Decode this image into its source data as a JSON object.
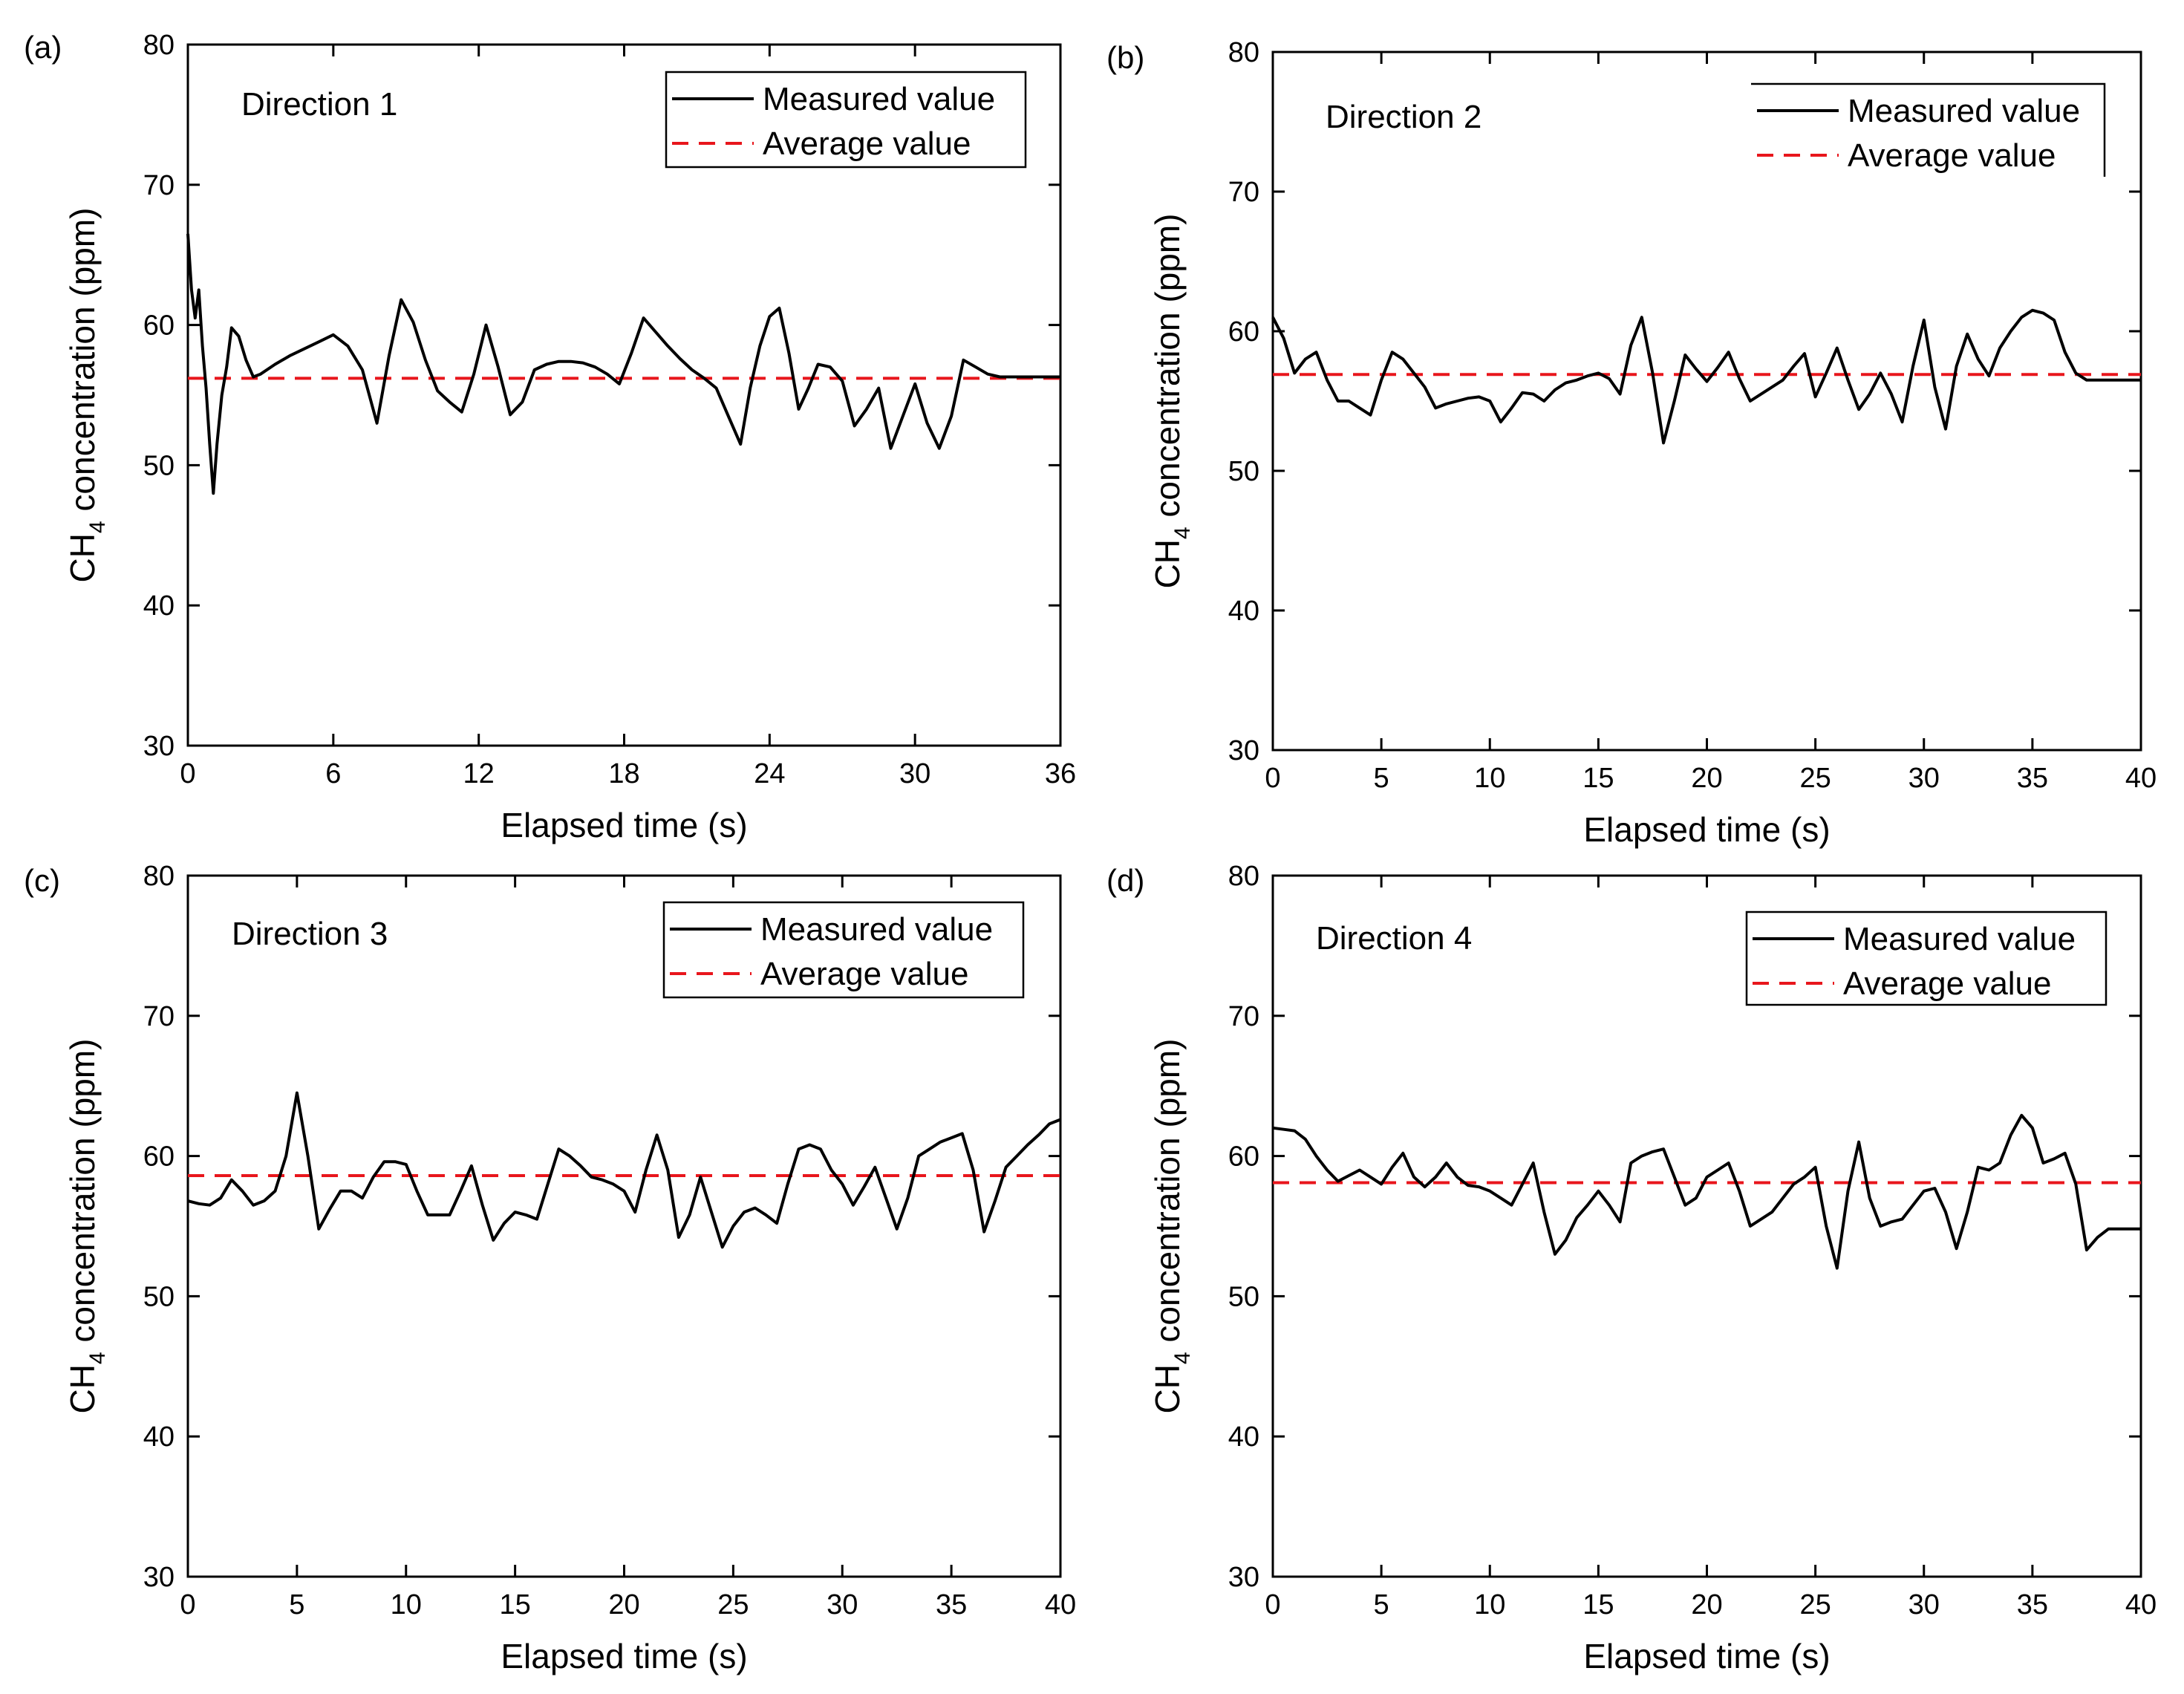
{
  "legend_labels": {
    "measured": "Measured value",
    "average": "Average value"
  },
  "colors": {
    "measured": "#000000",
    "average": "#e8161c"
  },
  "chart_data": [
    {
      "panel_label": "(a)",
      "type": "line",
      "title": "Direction 1",
      "xlabel": "Elapsed time (s)",
      "ylabel_main": "CH",
      "ylabel_sub": "4",
      "ylabel_rest": " concentration (ppm)",
      "xlim": [
        0,
        36
      ],
      "ylim": [
        30,
        80
      ],
      "xticks": [
        0,
        6,
        12,
        18,
        24,
        30,
        36
      ],
      "yticks": [
        30,
        40,
        50,
        60,
        70,
        80
      ],
      "legend_position": "top-right",
      "average": 56.2,
      "series": [
        {
          "name": "Measured value",
          "x": [
            0,
            0.15,
            0.3,
            0.45,
            0.6,
            0.75,
            0.9,
            1.05,
            1.2,
            1.4,
            1.6,
            1.8,
            2.1,
            2.4,
            2.7,
            3.0,
            3.6,
            4.2,
            4.8,
            5.4,
            6.0,
            6.6,
            7.2,
            7.8,
            8.3,
            8.8,
            9.3,
            9.8,
            10.3,
            10.8,
            11.3,
            11.8,
            12.3,
            12.8,
            13.3,
            13.8,
            14.3,
            14.8,
            15.3,
            15.8,
            16.3,
            16.8,
            17.3,
            17.8,
            18.3,
            18.8,
            19.3,
            19.8,
            20.3,
            20.8,
            21.3,
            21.8,
            22.3,
            22.8,
            23.2,
            23.6,
            24.0,
            24.4,
            24.8,
            25.2,
            25.6,
            26.0,
            26.5,
            27.0,
            27.5,
            28.0,
            28.5,
            29.0,
            29.5,
            30.0,
            30.5,
            31.0,
            31.5,
            32.0,
            32.5,
            33.0,
            33.5,
            34.0,
            34.5,
            35.0,
            35.5,
            36.0
          ],
          "y": [
            66.5,
            62.5,
            60.5,
            62.5,
            58.5,
            55.5,
            51.5,
            48.0,
            51.5,
            55.0,
            57.0,
            59.8,
            59.2,
            57.5,
            56.3,
            56.5,
            57.2,
            57.8,
            58.3,
            58.8,
            59.3,
            58.5,
            56.8,
            53.0,
            57.8,
            61.8,
            60.2,
            57.5,
            55.3,
            54.5,
            53.8,
            56.5,
            60.0,
            57.0,
            53.6,
            54.5,
            56.8,
            57.2,
            57.4,
            57.4,
            57.3,
            57.0,
            56.5,
            55.8,
            58.0,
            60.5,
            59.5,
            58.5,
            57.6,
            56.8,
            56.2,
            55.5,
            53.5,
            51.5,
            55.5,
            58.5,
            60.6,
            61.2,
            58.0,
            54.0,
            55.5,
            57.2,
            57.0,
            56.0,
            52.8,
            54.0,
            55.5,
            51.2,
            53.5,
            55.8,
            53.0,
            51.2,
            53.5,
            57.5,
            57.0,
            56.5,
            56.3,
            56.3,
            56.3,
            56.3,
            56.3,
            56.3
          ]
        }
      ]
    },
    {
      "panel_label": "(b)",
      "type": "line",
      "title": "Direction 2",
      "xlabel": "Elapsed time (s)",
      "ylabel_main": "CH",
      "ylabel_sub": "4",
      "ylabel_rest": " concentration (ppm)",
      "xlim": [
        0,
        40
      ],
      "ylim": [
        30,
        80
      ],
      "xticks": [
        0,
        5,
        10,
        15,
        20,
        25,
        30,
        35,
        40
      ],
      "yticks": [
        30,
        40,
        50,
        60,
        70,
        80
      ],
      "legend_position": "top-right",
      "average": 56.9,
      "series": [
        {
          "name": "Measured value",
          "x": [
            0,
            0.5,
            1.0,
            1.5,
            2.0,
            2.5,
            3.0,
            3.5,
            4.0,
            4.5,
            5.0,
            5.5,
            6.0,
            6.5,
            7.0,
            7.5,
            8.0,
            8.5,
            9.0,
            9.5,
            10.0,
            10.5,
            11.0,
            11.5,
            12.0,
            12.5,
            13.0,
            13.5,
            14.0,
            14.5,
            15.0,
            15.5,
            16.0,
            16.5,
            17.0,
            17.5,
            18.0,
            18.5,
            19.0,
            19.5,
            20.0,
            20.5,
            21.0,
            21.5,
            22.0,
            22.5,
            23.0,
            23.5,
            24.0,
            24.5,
            25.0,
            25.5,
            26.0,
            26.5,
            27.0,
            27.5,
            28.0,
            28.5,
            29.0,
            29.5,
            30.0,
            30.5,
            31.0,
            31.5,
            32.0,
            32.5,
            33.0,
            33.5,
            34.0,
            34.5,
            35.0,
            35.5,
            36.0,
            36.5,
            37.0,
            37.5,
            38.0,
            38.5,
            39.0,
            39.5,
            40.0
          ],
          "y": [
            61.0,
            59.5,
            57.0,
            58.0,
            58.5,
            56.5,
            55.0,
            55.0,
            54.5,
            54.0,
            56.5,
            58.5,
            58.0,
            57.0,
            56.0,
            54.5,
            54.8,
            55.0,
            55.2,
            55.3,
            55.0,
            53.5,
            54.5,
            55.6,
            55.5,
            55.0,
            55.8,
            56.3,
            56.5,
            56.8,
            57.0,
            56.6,
            55.5,
            59.0,
            61.0,
            57.0,
            52.0,
            55.0,
            58.3,
            57.3,
            56.4,
            57.4,
            58.5,
            56.6,
            55.0,
            55.5,
            56.0,
            56.5,
            57.5,
            58.4,
            55.3,
            57.0,
            58.8,
            56.5,
            54.4,
            55.5,
            57.0,
            55.5,
            53.5,
            57.5,
            60.8,
            56.0,
            53.0,
            57.5,
            59.8,
            58.0,
            56.8,
            58.8,
            60.0,
            61.0,
            61.5,
            61.3,
            60.8,
            58.5,
            57.0,
            56.5,
            56.5,
            56.5,
            56.5,
            56.5,
            56.5
          ]
        }
      ]
    },
    {
      "panel_label": "(c)",
      "type": "line",
      "title": "Direction 3",
      "xlabel": "Elapsed time (s)",
      "ylabel_main": "CH",
      "ylabel_sub": "4",
      "ylabel_rest": " concentration (ppm)",
      "xlim": [
        0,
        40
      ],
      "ylim": [
        30,
        80
      ],
      "xticks": [
        0,
        5,
        10,
        15,
        20,
        25,
        30,
        35,
        40
      ],
      "yticks": [
        30,
        40,
        50,
        60,
        70,
        80
      ],
      "legend_position": "top-right",
      "average": 58.6,
      "series": [
        {
          "name": "Measured value",
          "x": [
            0,
            0.5,
            1.0,
            1.5,
            2.0,
            2.5,
            3.0,
            3.5,
            4.0,
            4.5,
            5.0,
            5.5,
            6.0,
            6.5,
            7.0,
            7.5,
            8.0,
            8.5,
            9.0,
            9.5,
            10.0,
            10.5,
            11.0,
            11.5,
            12.0,
            12.5,
            13.0,
            13.5,
            14.0,
            14.5,
            15.0,
            15.5,
            16.0,
            16.5,
            17.0,
            17.5,
            18.0,
            18.5,
            19.0,
            19.5,
            20.0,
            20.5,
            21.0,
            21.5,
            22.0,
            22.5,
            23.0,
            23.5,
            24.0,
            24.5,
            25.0,
            25.5,
            26.0,
            26.5,
            27.0,
            27.5,
            28.0,
            28.5,
            29.0,
            29.5,
            30.0,
            30.5,
            31.0,
            31.5,
            32.0,
            32.5,
            33.0,
            33.5,
            34.0,
            34.5,
            35.0,
            35.5,
            36.0,
            36.5,
            37.0,
            37.5,
            38.0,
            38.5,
            39.0,
            39.5,
            40.0
          ],
          "y": [
            56.8,
            56.6,
            56.5,
            57.0,
            58.3,
            57.5,
            56.5,
            56.8,
            57.5,
            60.0,
            64.5,
            60.0,
            54.8,
            56.2,
            57.5,
            57.5,
            57.0,
            58.5,
            59.6,
            59.6,
            59.4,
            57.5,
            55.8,
            55.8,
            55.8,
            57.5,
            59.3,
            56.5,
            54.0,
            55.2,
            56.0,
            55.8,
            55.5,
            58.0,
            60.5,
            60.0,
            59.3,
            58.5,
            58.3,
            58.0,
            57.5,
            56.0,
            59.0,
            61.5,
            59.0,
            54.2,
            55.8,
            58.5,
            56.0,
            53.5,
            55.0,
            56.0,
            56.3,
            55.8,
            55.2,
            58.0,
            60.5,
            60.8,
            60.5,
            59.0,
            58.0,
            56.5,
            57.8,
            59.2,
            57.0,
            54.8,
            57.0,
            60.0,
            60.5,
            61.0,
            61.3,
            61.6,
            59.0,
            54.6,
            56.8,
            59.2,
            60.0,
            60.8,
            61.5,
            62.3,
            62.6
          ]
        }
      ]
    },
    {
      "panel_label": "(d)",
      "type": "line",
      "title": "Direction 4",
      "xlabel": "Elapsed time (s)",
      "ylabel_main": "CH",
      "ylabel_sub": "4",
      "ylabel_rest": " concentration (ppm)",
      "xlim": [
        0,
        40
      ],
      "ylim": [
        30,
        80
      ],
      "xticks": [
        0,
        5,
        10,
        15,
        20,
        25,
        30,
        35,
        40
      ],
      "yticks": [
        30,
        40,
        50,
        60,
        70,
        80
      ],
      "legend_position": "top-right",
      "average": 58.1,
      "series": [
        {
          "name": "Measured value",
          "x": [
            0,
            0.5,
            1.0,
            1.5,
            2.0,
            2.5,
            3.0,
            3.5,
            4.0,
            4.5,
            5.0,
            5.5,
            6.0,
            6.5,
            7.0,
            7.5,
            8.0,
            8.5,
            9.0,
            9.5,
            10.0,
            10.5,
            11.0,
            11.5,
            12.0,
            12.5,
            13.0,
            13.5,
            14.0,
            14.5,
            15.0,
            15.5,
            16.0,
            16.5,
            17.0,
            17.5,
            18.0,
            18.5,
            19.0,
            19.5,
            20.0,
            20.5,
            21.0,
            21.5,
            22.0,
            22.5,
            23.0,
            23.5,
            24.0,
            24.5,
            25.0,
            25.5,
            26.0,
            26.5,
            27.0,
            27.5,
            28.0,
            28.5,
            29.0,
            29.5,
            30.0,
            30.5,
            31.0,
            31.5,
            32.0,
            32.5,
            33.0,
            33.5,
            34.0,
            34.5,
            35.0,
            35.5,
            36.0,
            36.5,
            37.0,
            37.5,
            38.0,
            38.5,
            39.0,
            39.5,
            40.0
          ],
          "y": [
            62.0,
            61.9,
            61.8,
            61.2,
            60.0,
            59.0,
            58.2,
            58.6,
            59.0,
            58.5,
            58.0,
            59.2,
            60.2,
            58.5,
            57.8,
            58.5,
            59.5,
            58.5,
            57.9,
            57.8,
            57.5,
            57.0,
            56.5,
            58.0,
            59.5,
            56.0,
            53.0,
            54.0,
            55.6,
            56.5,
            57.5,
            56.5,
            55.3,
            59.5,
            60.0,
            60.3,
            60.5,
            58.5,
            56.5,
            57.0,
            58.5,
            59.0,
            59.5,
            57.5,
            55.0,
            55.5,
            56.0,
            57.0,
            58.0,
            58.5,
            59.2,
            55.0,
            52.0,
            57.5,
            61.0,
            57.0,
            55.0,
            55.3,
            55.5,
            56.5,
            57.5,
            57.7,
            56.0,
            53.4,
            56.0,
            59.2,
            59.0,
            59.5,
            61.5,
            62.9,
            62.0,
            59.5,
            59.8,
            60.2,
            58.0,
            53.3,
            54.2,
            54.8,
            54.8,
            54.8,
            54.8
          ]
        }
      ]
    }
  ]
}
